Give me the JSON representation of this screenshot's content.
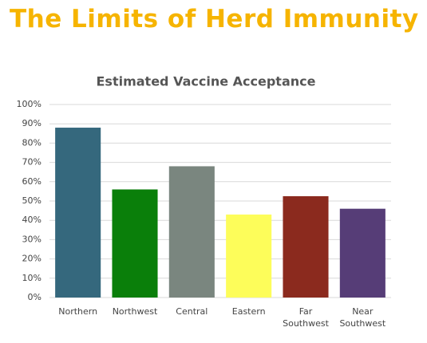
{
  "header": {
    "title": "The Limits of Herd Immunity"
  },
  "chart_data": {
    "type": "bar",
    "title": "Estimated Vaccine Acceptance",
    "categories": [
      "Northern",
      "Northwest",
      "Central",
      "Eastern",
      "Far Southwest",
      "Near Southwest"
    ],
    "values": [
      88,
      56,
      68,
      43,
      52.5,
      46
    ],
    "colors": [
      "#35687d",
      "#0a7f0a",
      "#7a867f",
      "#fdfd5a",
      "#8b2a1e",
      "#563d77"
    ],
    "ylim": [
      0,
      100
    ],
    "yticks": [
      {
        "value": 0,
        "label": "0%"
      },
      {
        "value": 10,
        "label": "10%"
      },
      {
        "value": 20,
        "label": "20%"
      },
      {
        "value": 30,
        "label": "30%"
      },
      {
        "value": 40,
        "label": "40%"
      },
      {
        "value": 50,
        "label": "50%"
      },
      {
        "value": 60,
        "label": "60%"
      },
      {
        "value": 70,
        "label": "70%"
      },
      {
        "value": 80,
        "label": "80%"
      },
      {
        "value": 90,
        "label": "90%"
      },
      {
        "value": 100,
        "label": "100%"
      }
    ],
    "grid": true
  }
}
